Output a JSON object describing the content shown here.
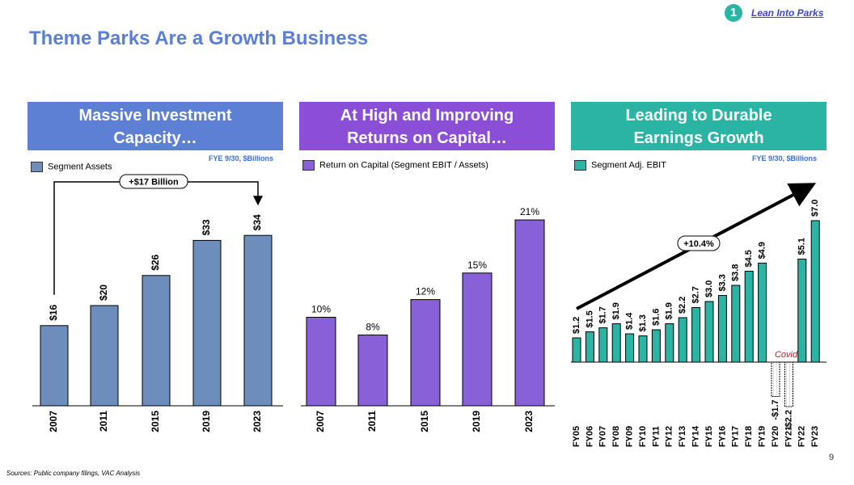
{
  "badge": {
    "number": "1",
    "link_text": "Lean Into Parks"
  },
  "title": "Theme Parks Are a Growth Business",
  "panels": {
    "assets": {
      "heading_line1": "Massive Investment",
      "heading_line2": "Capacity…",
      "unit_note": "FYE 9/30, $Billions",
      "legend": "Segment Assets"
    },
    "roc": {
      "heading_line1": "At High and Improving",
      "heading_line2": "Returns on Capital…",
      "legend": "Return on Capital (Segment EBIT / Assets)"
    },
    "ebit": {
      "heading_line1": "Leading to Durable",
      "heading_line2": "Earnings Growth",
      "unit_note": "FYE 9/30, $Billions",
      "legend": "Segment Adj. EBIT"
    }
  },
  "colors": {
    "assets": "#6d8ebd",
    "roc": "#8860d8",
    "ebit": "#2bb3a3",
    "assets_head": "#5d7fd4",
    "roc_head": "#8a4fd6",
    "ebit_head": "#2bb3a3",
    "covid": "#b22222"
  },
  "chart_data": [
    {
      "type": "bar",
      "categories": [
        "2007",
        "2011",
        "2015",
        "2019",
        "2023"
      ],
      "values": [
        16,
        20,
        26,
        33,
        34
      ],
      "labels": [
        "$16",
        "$20",
        "$26",
        "$33",
        "$34"
      ],
      "series_name": "Segment Assets",
      "annotation": "+$17 Billion",
      "ylim": [
        0,
        37
      ]
    },
    {
      "type": "bar",
      "categories": [
        "2007",
        "2011",
        "2015",
        "2019",
        "2023"
      ],
      "values": [
        10,
        8,
        12,
        15,
        21
      ],
      "labels": [
        "10%",
        "8%",
        "12%",
        "15%",
        "21%"
      ],
      "series_name": "Return on Capital (Segment EBIT / Assets)",
      "ylim": [
        0,
        23
      ]
    },
    {
      "type": "bar",
      "categories": [
        "FY05",
        "FY06",
        "FY07",
        "FY08",
        "FY09",
        "FY10",
        "FY11",
        "FY12",
        "FY13",
        "FY14",
        "FY15",
        "FY16",
        "FY17",
        "FY18",
        "FY19",
        "FY20",
        "FY21",
        "FY22",
        "FY23"
      ],
      "values": [
        1.2,
        1.5,
        1.7,
        1.9,
        1.4,
        1.3,
        1.6,
        1.9,
        2.2,
        2.7,
        3.0,
        3.3,
        3.8,
        4.5,
        4.9,
        -1.7,
        -2.2,
        5.1,
        7.0
      ],
      "labels": [
        "$1.2",
        "$1.5",
        "$1.7",
        "$1.9",
        "$1.4",
        "$1.3",
        "$1.6",
        "$1.9",
        "$2.2",
        "$2.7",
        "$3.0",
        "$3.3",
        "$3.8",
        "$4.5",
        "$4.9",
        "-$1.7",
        "-$2.2",
        "$5.1",
        "$7.0"
      ],
      "series_name": "Segment Adj. EBIT",
      "annotation": "+10.4%",
      "covid_label": "Covid",
      "ylim": [
        -2.3,
        7.0
      ]
    }
  ],
  "source": "Sources: Public company filings, VAC Analysis",
  "page_number": "9"
}
